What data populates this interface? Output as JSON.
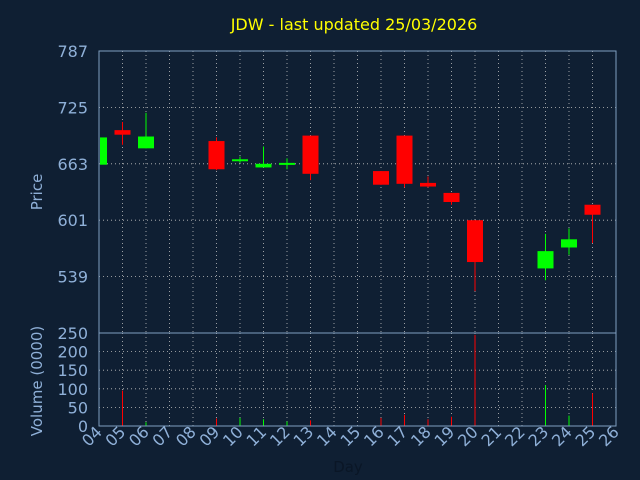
{
  "chart_data": {
    "type": "candlestick",
    "title": "JDW - last updated 25/03/2026",
    "xlabel": "Day",
    "price_panel": {
      "ylabel": "Price",
      "ylim": [
        477,
        787
      ],
      "y_ticks": [
        "787",
        "725",
        "663",
        "601",
        "539"
      ],
      "y_tick_values": [
        787,
        725,
        663,
        601,
        539
      ]
    },
    "volume_panel": {
      "ylabel": "Volume (0000)",
      "ylim": [
        0,
        250
      ],
      "y_ticks": [
        "250",
        "200",
        "150",
        "100",
        "50",
        "0"
      ],
      "y_tick_values": [
        250,
        200,
        150,
        100,
        50,
        0
      ]
    },
    "x_ticks": [
      "04",
      "05",
      "06",
      "07",
      "08",
      "09",
      "10",
      "11",
      "12",
      "13",
      "14",
      "15",
      "16",
      "17",
      "18",
      "19",
      "20",
      "21",
      "22",
      "23",
      "24",
      "25",
      "26"
    ],
    "candles": [
      {
        "day": "04",
        "open": 662,
        "high": 692,
        "low": 662,
        "close": 692,
        "volume": 0
      },
      {
        "day": "05",
        "open": 700,
        "high": 709,
        "low": 684,
        "close": 695,
        "volume": 95
      },
      {
        "day": "06",
        "open": 680,
        "high": 719,
        "low": 680,
        "close": 693,
        "volume": 10
      },
      {
        "day": "09",
        "open": 688,
        "high": 692,
        "low": 656,
        "close": 657,
        "volume": 20
      },
      {
        "day": "10",
        "open": 666,
        "high": 671,
        "low": 664,
        "close": 668,
        "volume": 22
      },
      {
        "day": "11",
        "open": 659,
        "high": 682,
        "low": 659,
        "close": 663,
        "volume": 18
      },
      {
        "day": "12",
        "open": 662,
        "high": 669,
        "low": 657,
        "close": 664,
        "volume": 12
      },
      {
        "day": "13",
        "open": 694,
        "high": 694,
        "low": 645,
        "close": 652,
        "volume": 15
      },
      {
        "day": "16",
        "open": 655,
        "high": 655,
        "low": 640,
        "close": 640,
        "volume": 22
      },
      {
        "day": "17",
        "open": 694,
        "high": 694,
        "low": 637,
        "close": 641,
        "volume": 30
      },
      {
        "day": "18",
        "open": 642,
        "high": 649,
        "low": 637,
        "close": 638,
        "volume": 18
      },
      {
        "day": "19",
        "open": 631,
        "high": 631,
        "low": 618,
        "close": 621,
        "volume": 25
      },
      {
        "day": "20",
        "open": 601,
        "high": 601,
        "low": 523,
        "close": 555,
        "volume": 245
      },
      {
        "day": "23",
        "open": 548,
        "high": 586,
        "low": 535,
        "close": 567,
        "volume": 110
      },
      {
        "day": "24",
        "open": 571,
        "high": 592,
        "low": 563,
        "close": 580,
        "volume": 28
      },
      {
        "day": "25",
        "open": 618,
        "high": 618,
        "low": 576,
        "close": 607,
        "volume": 88
      }
    ],
    "colors": {
      "up": "#00ff00",
      "down": "#ff0000",
      "grid": "#c0c0c0",
      "frame": "#7f9fc0",
      "background": "#0f1f33",
      "title": "#ffff00",
      "tick": "#8fb0d8"
    },
    "grid": true
  }
}
